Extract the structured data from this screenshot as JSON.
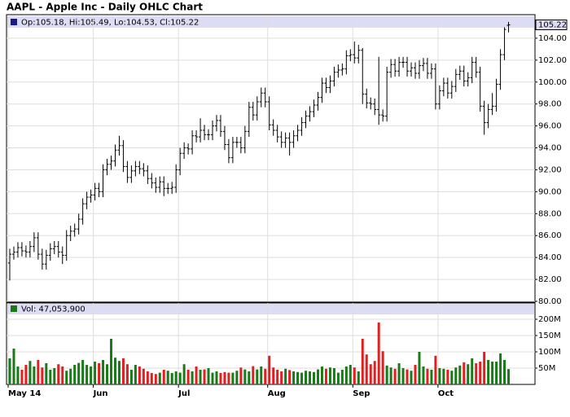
{
  "chart_data": [
    {
      "type": "ohlc",
      "title": "AAPL - Apple Inc - Daily OHLC Chart",
      "header": "Op:105.18, Hi:105.49, Lo:104.53, Cl:105.22",
      "color": "#000000",
      "grid": true,
      "ylim": [
        80,
        106
      ],
      "yticks": [
        {
          "value": 80,
          "label": "80.00"
        },
        {
          "value": 82,
          "label": "82.00"
        },
        {
          "value": 84,
          "label": "84.00"
        },
        {
          "value": 86,
          "label": "86.00"
        },
        {
          "value": 88,
          "label": "88.00"
        },
        {
          "value": 90,
          "label": "90.00"
        },
        {
          "value": 92,
          "label": "92.00"
        },
        {
          "value": 94,
          "label": "94.00"
        },
        {
          "value": 96,
          "label": "96.00"
        },
        {
          "value": 98,
          "label": "98.00"
        },
        {
          "value": 100,
          "label": "100.00"
        },
        {
          "value": 102,
          "label": "102.00"
        },
        {
          "value": 104,
          "label": "104.00"
        }
      ],
      "last_price": 105.22,
      "open": [
        83.5,
        84.3,
        84.5,
        84.9,
        84.6,
        84.5,
        85.0,
        85.8,
        84.3,
        83.4,
        84.2,
        84.8,
        85.0,
        84.5,
        84.2,
        86.0,
        86.4,
        86.6,
        87.5,
        88.9,
        89.5,
        89.7,
        90.3,
        90.0,
        92.0,
        92.5,
        92.8,
        93.8,
        94.2,
        92.3,
        91.3,
        91.9,
        92.3,
        92.1,
        91.9,
        91.2,
        90.8,
        90.4,
        90.9,
        90.3,
        90.3,
        90.4,
        92.0,
        93.5,
        94.0,
        93.9,
        95.1,
        95.0,
        95.6,
        95.2,
        95.2,
        96.0,
        96.5,
        95.5,
        94.3,
        93.1,
        94.5,
        94.5,
        94.0,
        95.5,
        97.7,
        97.0,
        98.2,
        99.0,
        98.2,
        96.1,
        95.6,
        95.0,
        94.5,
        94.9,
        94.5,
        95.1,
        95.6,
        96.3,
        96.9,
        97.3,
        97.9,
        98.6,
        99.9,
        99.5,
        100.1,
        100.9,
        101.1,
        101.2,
        102.4,
        102.5,
        102.2,
        102.9,
        98.9,
        98.1,
        98.0,
        97.5,
        97.0,
        96.9,
        100.9,
        101.6,
        101.0,
        101.8,
        101.8,
        101.0,
        101.3,
        100.8,
        101.5,
        101.7,
        100.8,
        101.2,
        98.0,
        99.2,
        99.9,
        99.0,
        99.6,
        100.7,
        101.0,
        100.1,
        100.4,
        101.8,
        100.9,
        97.8,
        96.3,
        97.5,
        97.8,
        99.8,
        102.5,
        105.18
      ],
      "high": [
        84.8,
        85.0,
        85.4,
        85.4,
        85.1,
        85.5,
        86.3,
        86.3,
        84.8,
        84.7,
        85.3,
        85.5,
        85.5,
        85.0,
        86.5,
        86.9,
        87.1,
        88.0,
        89.4,
        90.0,
        90.2,
        90.8,
        90.8,
        92.5,
        93.0,
        93.3,
        94.3,
        95.1,
        94.7,
        92.8,
        92.4,
        92.8,
        92.8,
        92.6,
        92.4,
        91.7,
        91.3,
        91.4,
        91.4,
        90.8,
        90.9,
        92.5,
        94.0,
        94.5,
        94.4,
        95.6,
        95.6,
        96.7,
        96.1,
        95.7,
        96.5,
        97.0,
        97.0,
        96.0,
        94.8,
        95.0,
        95.0,
        95.0,
        96.0,
        98.2,
        98.2,
        98.7,
        99.5,
        99.5,
        98.7,
        96.6,
        96.1,
        95.5,
        95.4,
        95.4,
        95.6,
        96.1,
        96.8,
        97.4,
        97.8,
        98.4,
        99.1,
        100.4,
        100.4,
        100.6,
        101.4,
        101.6,
        101.7,
        102.9,
        103.0,
        103.7,
        103.4,
        103.1,
        99.4,
        98.6,
        98.5,
        102.3,
        97.5,
        101.4,
        102.1,
        102.1,
        102.3,
        102.3,
        102.3,
        101.8,
        101.8,
        102.0,
        102.2,
        102.2,
        101.7,
        101.7,
        99.7,
        100.4,
        100.4,
        100.1,
        101.2,
        101.5,
        101.5,
        100.9,
        102.3,
        102.3,
        101.4,
        98.3,
        98.0,
        99.0,
        100.3,
        103.0,
        105.0,
        105.49
      ],
      "low": [
        81.9,
        83.8,
        84.0,
        84.1,
        84.0,
        84.0,
        84.5,
        83.8,
        82.9,
        82.9,
        83.7,
        84.3,
        84.0,
        83.4,
        83.7,
        85.5,
        85.9,
        86.1,
        87.0,
        88.4,
        89.0,
        89.2,
        89.5,
        89.5,
        91.5,
        92.0,
        92.3,
        93.3,
        91.8,
        90.8,
        90.8,
        91.4,
        91.6,
        91.4,
        90.7,
        90.3,
        89.9,
        89.9,
        89.6,
        89.8,
        89.8,
        89.9,
        91.5,
        93.0,
        93.4,
        93.4,
        94.5,
        94.5,
        94.7,
        94.7,
        94.7,
        95.5,
        95.0,
        93.8,
        92.6,
        92.6,
        94.0,
        93.5,
        93.5,
        95.0,
        96.5,
        96.5,
        97.7,
        97.7,
        95.6,
        95.1,
        94.5,
        94.0,
        94.0,
        93.3,
        94.0,
        94.6,
        95.1,
        95.8,
        96.4,
        96.8,
        97.4,
        98.1,
        99.0,
        99.0,
        99.6,
        100.4,
        100.6,
        100.7,
        101.9,
        101.7,
        101.7,
        98.0,
        97.6,
        97.5,
        97.0,
        96.1,
        96.4,
        96.4,
        100.4,
        100.5,
        100.5,
        101.3,
        100.5,
        100.5,
        100.3,
        100.3,
        101.0,
        100.3,
        100.3,
        97.5,
        97.5,
        98.7,
        98.5,
        98.5,
        99.1,
        100.2,
        99.6,
        99.6,
        99.9,
        100.4,
        97.3,
        95.2,
        95.8,
        97.0,
        97.3,
        99.3,
        102.0,
        104.53
      ],
      "close": [
        84.3,
        84.5,
        84.9,
        84.6,
        84.5,
        85.0,
        85.8,
        84.3,
        83.4,
        84.2,
        84.8,
        85.0,
        84.5,
        84.2,
        86.0,
        86.4,
        86.6,
        87.5,
        88.9,
        89.5,
        89.7,
        90.3,
        90.0,
        92.0,
        92.5,
        92.8,
        93.8,
        94.2,
        92.3,
        91.3,
        91.9,
        92.3,
        92.1,
        91.9,
        91.2,
        90.8,
        90.4,
        90.9,
        90.3,
        90.3,
        90.4,
        92.0,
        93.5,
        94.0,
        93.9,
        95.1,
        95.0,
        95.6,
        95.2,
        95.2,
        96.0,
        96.5,
        95.5,
        94.3,
        93.1,
        94.5,
        94.5,
        94.0,
        95.5,
        97.7,
        97.0,
        98.2,
        99.0,
        98.2,
        96.1,
        95.6,
        95.0,
        94.5,
        94.9,
        94.5,
        95.1,
        95.6,
        96.3,
        96.9,
        97.3,
        97.9,
        98.6,
        99.9,
        99.5,
        100.1,
        100.9,
        101.1,
        101.2,
        102.4,
        102.5,
        102.2,
        102.9,
        98.9,
        98.1,
        98.0,
        97.5,
        97.0,
        96.9,
        100.9,
        101.6,
        101.0,
        101.8,
        101.8,
        101.0,
        101.3,
        100.8,
        101.5,
        101.7,
        100.8,
        101.2,
        98.0,
        99.2,
        99.9,
        99.0,
        99.6,
        100.7,
        101.0,
        100.1,
        100.4,
        101.8,
        100.9,
        97.8,
        96.3,
        97.5,
        97.8,
        99.8,
        102.5,
        104.8,
        105.22
      ]
    },
    {
      "type": "bar",
      "header": "Vol: 47,053,900",
      "up_color": "#1a7a1a",
      "down_color": "#e02020",
      "grid": true,
      "ylim": [
        0,
        250
      ],
      "yticks": [
        {
          "value": 50,
          "label": "50M"
        },
        {
          "value": 100,
          "label": "100M"
        },
        {
          "value": 150,
          "label": "150M"
        },
        {
          "value": 200,
          "label": "200M"
        }
      ],
      "categories": [
        "May 14",
        null,
        null,
        null,
        null,
        null,
        null,
        null,
        null,
        null,
        null,
        null,
        null,
        null,
        null,
        null,
        null,
        null,
        null,
        null,
        null,
        "Jun",
        null,
        null,
        null,
        null,
        null,
        null,
        null,
        null,
        null,
        null,
        null,
        null,
        null,
        null,
        null,
        null,
        null,
        null,
        null,
        null,
        "Jul",
        null,
        null,
        null,
        null,
        null,
        null,
        null,
        null,
        null,
        null,
        null,
        null,
        null,
        null,
        null,
        null,
        null,
        null,
        null,
        null,
        null,
        "Aug",
        null,
        null,
        null,
        null,
        null,
        null,
        null,
        null,
        null,
        null,
        null,
        null,
        null,
        null,
        null,
        null,
        null,
        null,
        null,
        null,
        "Sep",
        null,
        null,
        null,
        null,
        null,
        null,
        null,
        null,
        null,
        null,
        null,
        null,
        null,
        null,
        null,
        null,
        null,
        null,
        null,
        null,
        "Oct",
        null,
        null,
        null,
        null,
        null,
        null,
        null,
        null,
        null,
        null,
        null,
        null,
        null,
        null,
        null,
        null,
        null
      ],
      "values": [
        80,
        110,
        55,
        45,
        60,
        72,
        55,
        75,
        52,
        65,
        45,
        50,
        62,
        55,
        42,
        48,
        60,
        66,
        75,
        60,
        55,
        70,
        65,
        75,
        62,
        140,
        82,
        72,
        80,
        62,
        45,
        60,
        55,
        48,
        40,
        35,
        32,
        36,
        45,
        42,
        35,
        40,
        36,
        62,
        45,
        40,
        55,
        45,
        46,
        50,
        36,
        40,
        35,
        38,
        36,
        36,
        42,
        52,
        46,
        40,
        56,
        46,
        55,
        48,
        88,
        52,
        45,
        40,
        48,
        44,
        40,
        38,
        36,
        42,
        40,
        38,
        46,
        55,
        48,
        52,
        50,
        36,
        45,
        55,
        60,
        52,
        40,
        140,
        92,
        62,
        72,
        190,
        102,
        58,
        52,
        48,
        65,
        50,
        46,
        42,
        60,
        100,
        55,
        48,
        45,
        88,
        50,
        48,
        45,
        42,
        52,
        58,
        68,
        62,
        80,
        65,
        70,
        100,
        75,
        70,
        70,
        95,
        75,
        47.0539
      ]
    }
  ]
}
